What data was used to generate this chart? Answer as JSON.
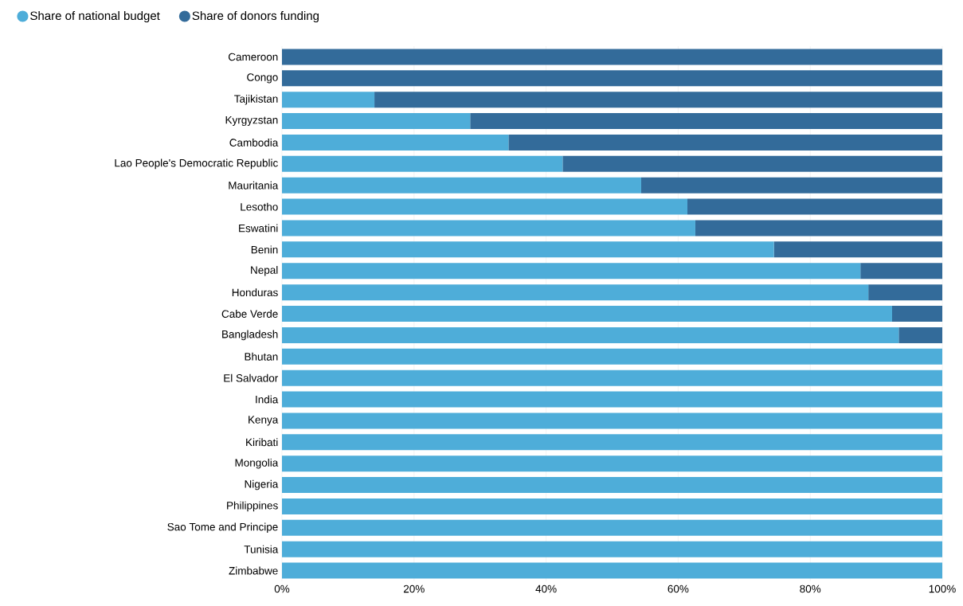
{
  "chart_data": {
    "type": "bar",
    "orientation": "horizontal",
    "stacked": true,
    "categories": [
      "Cameroon",
      "Congo",
      "Tajikistan",
      "Kyrgyzstan",
      "Cambodia",
      "Lao People's Democratic Republic",
      "Mauritania",
      "Lesotho",
      "Eswatini",
      "Benin",
      "Nepal",
      "Honduras",
      "Cabe Verde",
      "Bangladesh",
      "Bhutan",
      "El Salvador",
      "India",
      "Kenya",
      "Kiribati",
      "Mongolia",
      "Nigeria",
      "Philippines",
      "Sao Tome and Principe",
      "Tunisia",
      "Zimbabwe"
    ],
    "series": [
      {
        "name": "Share of national budget",
        "color": "#4eadd9",
        "values": [
          0,
          0,
          14,
          28.5,
          34.3,
          42.5,
          54.4,
          61.4,
          62.6,
          74.5,
          87.6,
          88.8,
          92.4,
          93.4,
          100,
          100,
          100,
          100,
          100,
          100,
          100,
          100,
          100,
          100,
          100
        ]
      },
      {
        "name": "Share of donors funding",
        "color": "#336b9a",
        "values": [
          100,
          100,
          86,
          71.5,
          65.7,
          57.5,
          45.6,
          38.6,
          37.4,
          25.5,
          12.4,
          11.2,
          7.6,
          6.6,
          0,
          0,
          0,
          0,
          0,
          0,
          0,
          0,
          0,
          0,
          0
        ]
      }
    ],
    "xlim": [
      0,
      100
    ],
    "xticks": [
      {
        "value": 0,
        "label": "0%"
      },
      {
        "value": 20,
        "label": "20%"
      },
      {
        "value": 40,
        "label": "40%"
      },
      {
        "value": 60,
        "label": "60%"
      },
      {
        "value": 80,
        "label": "80%"
      },
      {
        "value": 100,
        "label": "100%"
      }
    ],
    "grid": "x",
    "legend": "top left"
  }
}
